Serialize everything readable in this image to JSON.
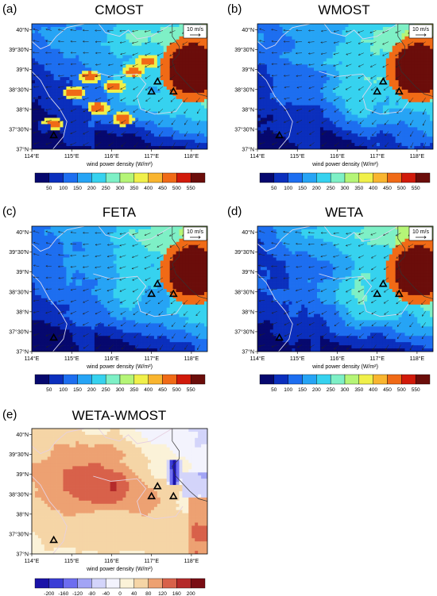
{
  "figure": {
    "panels": [
      {
        "letter": "(a)",
        "title": "CMOST",
        "show_ref_vector": true,
        "ref_vector_label": "10 m/s",
        "colorbar": "wpd"
      },
      {
        "letter": "(b)",
        "title": "WMOST",
        "show_ref_vector": true,
        "ref_vector_label": "10 m/s",
        "colorbar": "wpd"
      },
      {
        "letter": "(c)",
        "title": "FETA",
        "show_ref_vector": true,
        "ref_vector_label": "10 m/s",
        "colorbar": "wpd"
      },
      {
        "letter": "(d)",
        "title": "WETA",
        "show_ref_vector": true,
        "ref_vector_label": "10 m/s",
        "colorbar": "wpd"
      },
      {
        "letter": "(e)",
        "title": "WETA-WMOST",
        "show_ref_vector": false,
        "ref_vector_label": "",
        "colorbar": "diff"
      }
    ],
    "lon_ticks": [
      {
        "value": 114,
        "label": "114°E"
      },
      {
        "value": 115,
        "label": "115°E"
      },
      {
        "value": 116,
        "label": "116°E"
      },
      {
        "value": 117,
        "label": "117°E"
      },
      {
        "value": 118,
        "label": "118°E"
      }
    ],
    "lat_ticks": [
      {
        "value": 37.0,
        "label": "37°N"
      },
      {
        "value": 37.5,
        "label": "37°30'N"
      },
      {
        "value": 38.0,
        "label": "38°N"
      },
      {
        "value": 38.5,
        "label": "38°30'N"
      },
      {
        "value": 39.0,
        "label": "39°N"
      },
      {
        "value": 39.5,
        "label": "39°30'N"
      },
      {
        "value": 40.0,
        "label": "40°N"
      }
    ],
    "x_range": [
      114,
      118.4
    ],
    "y_range": [
      37,
      40.15
    ],
    "colorbar_title": "wind power density (W/m²)",
    "colorbar_wpd": {
      "labels": [
        "50",
        "100",
        "150",
        "200",
        "250",
        "300",
        "350",
        "400",
        "450",
        "500",
        "550"
      ],
      "colors": [
        "#06086e",
        "#0b2fbd",
        "#1d6ef0",
        "#26a4f5",
        "#36d2ef",
        "#7ef0c6",
        "#b5f577",
        "#f0f04a",
        "#f9b52f",
        "#f06a16",
        "#d11a0a",
        "#6b0d0a"
      ]
    },
    "colorbar_diff": {
      "labels": [
        "-200",
        "-160",
        "-120",
        "-80",
        "-40",
        "0",
        "40",
        "80",
        "120",
        "160",
        "200"
      ],
      "colors": [
        "#1a12a8",
        "#3a3dd6",
        "#6d6df0",
        "#a2a4f5",
        "#d3d4fa",
        "#f3f3fd",
        "#fbf2d8",
        "#f5d5a6",
        "#eda172",
        "#d8614a",
        "#b42a2a",
        "#7a0d14"
      ]
    },
    "stations": [
      {
        "lon": 114.55,
        "lat": 37.35
      },
      {
        "lon": 117.15,
        "lat": 38.7
      },
      {
        "lon": 117.0,
        "lat": 38.45
      },
      {
        "lon": 117.55,
        "lat": 38.45
      }
    ],
    "chart_data": [
      {
        "type": "heatmap",
        "title": "CMOST",
        "field": "wind power density",
        "units": "W/m²",
        "vectors": "wind",
        "ref_vector": "10 m/s"
      },
      {
        "type": "heatmap",
        "title": "WMOST",
        "field": "wind power density",
        "units": "W/m²",
        "vectors": "wind",
        "ref_vector": "10 m/s"
      },
      {
        "type": "heatmap",
        "title": "FETA",
        "field": "wind power density",
        "units": "W/m²",
        "vectors": "wind",
        "ref_vector": "10 m/s"
      },
      {
        "type": "heatmap",
        "title": "WETA",
        "field": "wind power density",
        "units": "W/m²",
        "vectors": "wind",
        "ref_vector": "10 m/s"
      },
      {
        "type": "heatmap",
        "title": "WETA-WMOST",
        "field": "wind power density difference",
        "units": "W/m²"
      }
    ]
  }
}
